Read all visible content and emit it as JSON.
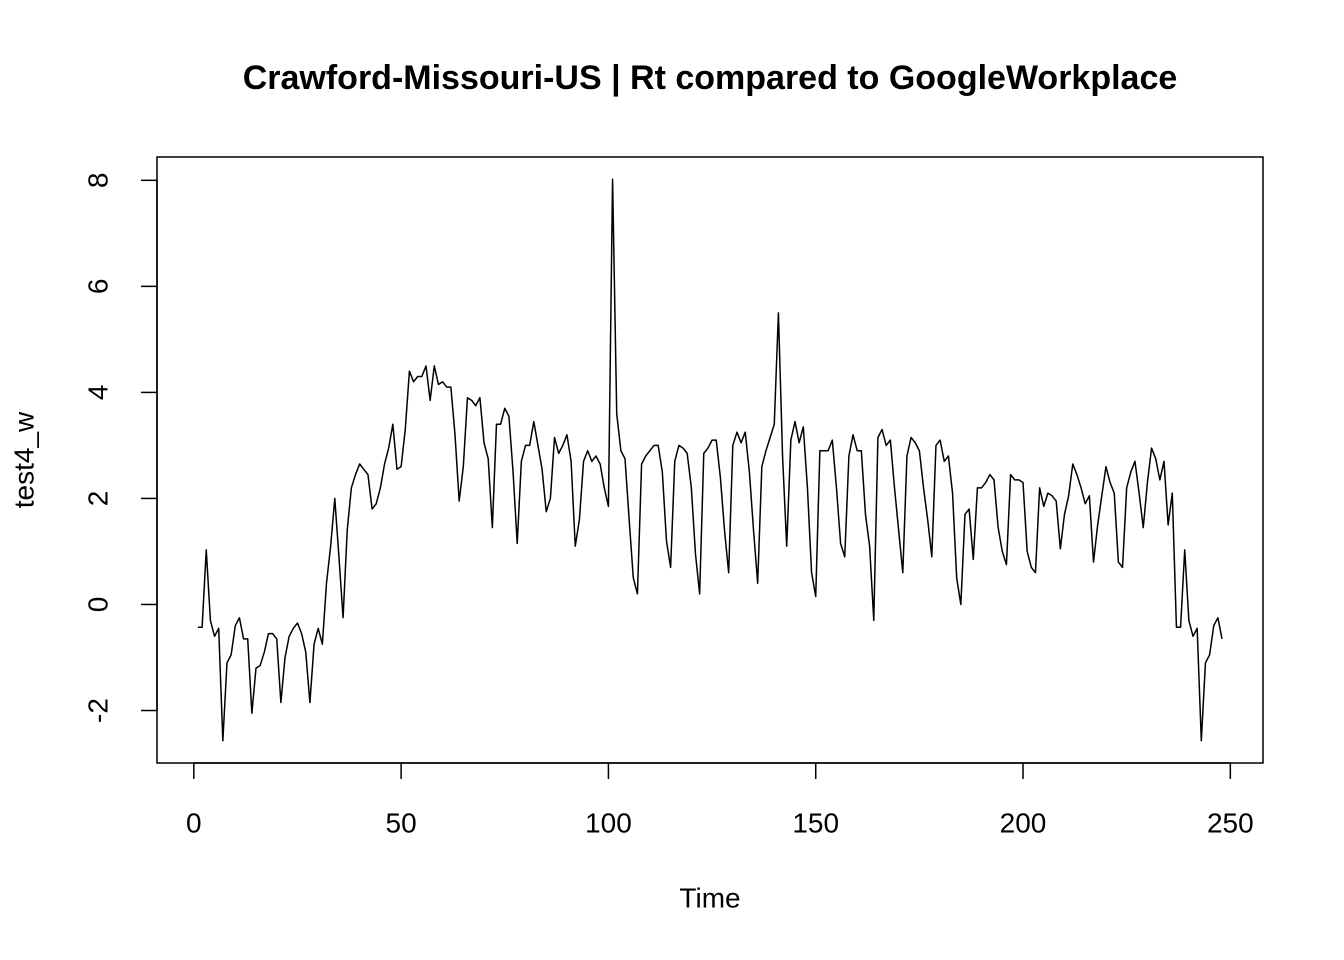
{
  "chart_data": {
    "type": "line",
    "title": "Crawford-Missouri-US | Rt compared to GoogleWorkplace",
    "x_label": "Time",
    "y_label": "test4_w",
    "xlim": [
      -8.88,
      257.88
    ],
    "ylim": [
      -2.99,
      8.44
    ],
    "xticks": [
      0,
      50,
      100,
      150,
      200,
      250
    ],
    "yticks": [
      -2,
      0,
      2,
      4,
      6,
      8
    ],
    "color": "#000000",
    "x": [
      1,
      2,
      3,
      4,
      5,
      6,
      7,
      8,
      9,
      10,
      11,
      12,
      13,
      14,
      15,
      16,
      17,
      18,
      19,
      20,
      21,
      22,
      23,
      24,
      25,
      26,
      27,
      28,
      29,
      30,
      31,
      32,
      33,
      34,
      35,
      36,
      37,
      38,
      39,
      40,
      41,
      42,
      43,
      44,
      45,
      46,
      47,
      48,
      49,
      50,
      51,
      52,
      53,
      54,
      55,
      56,
      57,
      58,
      59,
      60,
      61,
      62,
      63,
      64,
      65,
      66,
      67,
      68,
      69,
      70,
      71,
      72,
      73,
      74,
      75,
      76,
      77,
      78,
      79,
      80,
      81,
      82,
      83,
      84,
      85,
      86,
      87,
      88,
      89,
      90,
      91,
      92,
      93,
      94,
      95,
      96,
      97,
      98,
      99,
      100,
      101,
      102,
      103,
      104,
      105,
      106,
      107,
      108,
      109,
      110,
      111,
      112,
      113,
      114,
      115,
      116,
      117,
      118,
      119,
      120,
      121,
      122,
      123,
      124,
      125,
      126,
      127,
      128,
      129,
      130,
      131,
      132,
      133,
      134,
      135,
      136,
      137,
      138,
      139,
      140,
      141,
      142,
      143,
      144,
      145,
      146,
      147,
      148,
      149,
      150,
      151,
      152,
      153,
      154,
      155,
      156,
      157,
      158,
      159,
      160,
      161,
      162,
      163,
      164,
      165,
      166,
      167,
      168,
      169,
      170,
      171,
      172,
      173,
      174,
      175,
      176,
      177,
      178,
      179,
      180,
      181,
      182,
      183,
      184,
      185,
      186,
      187,
      188,
      189,
      190,
      191,
      192,
      193,
      194,
      195,
      196,
      197,
      198,
      199,
      200,
      201,
      202,
      203,
      204,
      205,
      206,
      207,
      208,
      209,
      210,
      211,
      212,
      213,
      214,
      215,
      216,
      217,
      218,
      219,
      220,
      221,
      222,
      223,
      224,
      225,
      226,
      227,
      228,
      229,
      230,
      231,
      232,
      233,
      234,
      235,
      236,
      237,
      238,
      239,
      240,
      241,
      242,
      243,
      244,
      245,
      246,
      247,
      248
    ],
    "values": [
      -0.43,
      -0.43,
      1.03,
      -0.3,
      -0.6,
      -0.45,
      -2.57,
      -1.1,
      -0.95,
      -0.4,
      -0.25,
      -0.65,
      -0.65,
      -2.05,
      -1.2,
      -1.15,
      -0.9,
      -0.55,
      -0.55,
      -0.65,
      -1.85,
      -1.0,
      -0.6,
      -0.45,
      -0.35,
      -0.55,
      -0.9,
      -1.85,
      -0.75,
      -0.45,
      -0.75,
      0.4,
      1.1,
      2.0,
      0.9,
      -0.25,
      1.4,
      2.2,
      2.45,
      2.65,
      2.55,
      2.45,
      1.8,
      1.9,
      2.2,
      2.65,
      2.95,
      3.4,
      2.55,
      2.6,
      3.3,
      4.4,
      4.2,
      4.3,
      4.3,
      4.5,
      3.85,
      4.5,
      4.15,
      4.2,
      4.1,
      4.1,
      3.2,
      1.95,
      2.6,
      3.9,
      3.85,
      3.75,
      3.9,
      3.05,
      2.75,
      1.45,
      3.4,
      3.4,
      3.7,
      3.55,
      2.5,
      1.15,
      2.7,
      3.0,
      3.0,
      3.45,
      3.0,
      2.55,
      1.75,
      2.0,
      3.15,
      2.85,
      3.0,
      3.2,
      2.7,
      1.1,
      1.6,
      2.7,
      2.9,
      2.7,
      2.8,
      2.65,
      2.2,
      1.85,
      8.02,
      3.6,
      2.9,
      2.75,
      1.6,
      0.5,
      0.2,
      2.65,
      2.8,
      2.9,
      3.0,
      3.0,
      2.5,
      1.2,
      0.7,
      2.7,
      3.0,
      2.95,
      2.85,
      2.2,
      0.95,
      0.2,
      2.85,
      2.95,
      3.1,
      3.1,
      2.4,
      1.4,
      0.6,
      3.0,
      3.25,
      3.05,
      3.25,
      2.5,
      1.4,
      0.4,
      2.6,
      2.9,
      3.15,
      3.4,
      5.5,
      2.8,
      1.1,
      3.1,
      3.45,
      3.05,
      3.35,
      2.2,
      0.6,
      0.15,
      2.9,
      2.9,
      2.9,
      3.1,
      2.2,
      1.15,
      0.9,
      2.8,
      3.2,
      2.9,
      2.9,
      1.7,
      1.1,
      -0.3,
      3.15,
      3.3,
      3.0,
      3.1,
      2.2,
      1.4,
      0.6,
      2.8,
      3.15,
      3.05,
      2.9,
      2.2,
      1.6,
      0.9,
      3.0,
      3.1,
      2.7,
      2.8,
      2.1,
      0.5,
      0.0,
      1.7,
      1.8,
      0.85,
      2.2,
      2.2,
      2.3,
      2.45,
      2.35,
      1.45,
      1.0,
      0.75,
      2.45,
      2.35,
      2.35,
      2.3,
      1.0,
      0.7,
      0.6,
      2.2,
      1.85,
      2.1,
      2.05,
      1.95,
      1.05,
      1.7,
      2.05,
      2.65,
      2.45,
      2.2,
      1.9,
      2.05,
      0.8,
      1.5,
      2.05,
      2.6,
      2.3,
      2.1,
      0.8,
      0.7,
      2.2,
      2.5,
      2.7,
      2.1,
      1.45,
      2.3,
      2.95,
      2.75,
      2.35,
      2.7,
      1.5,
      2.1,
      -0.43,
      -0.43,
      1.03,
      -0.3,
      -0.6,
      -0.45,
      -2.57,
      -1.1,
      -0.95,
      -0.4,
      -0.25,
      -0.65
    ]
  }
}
